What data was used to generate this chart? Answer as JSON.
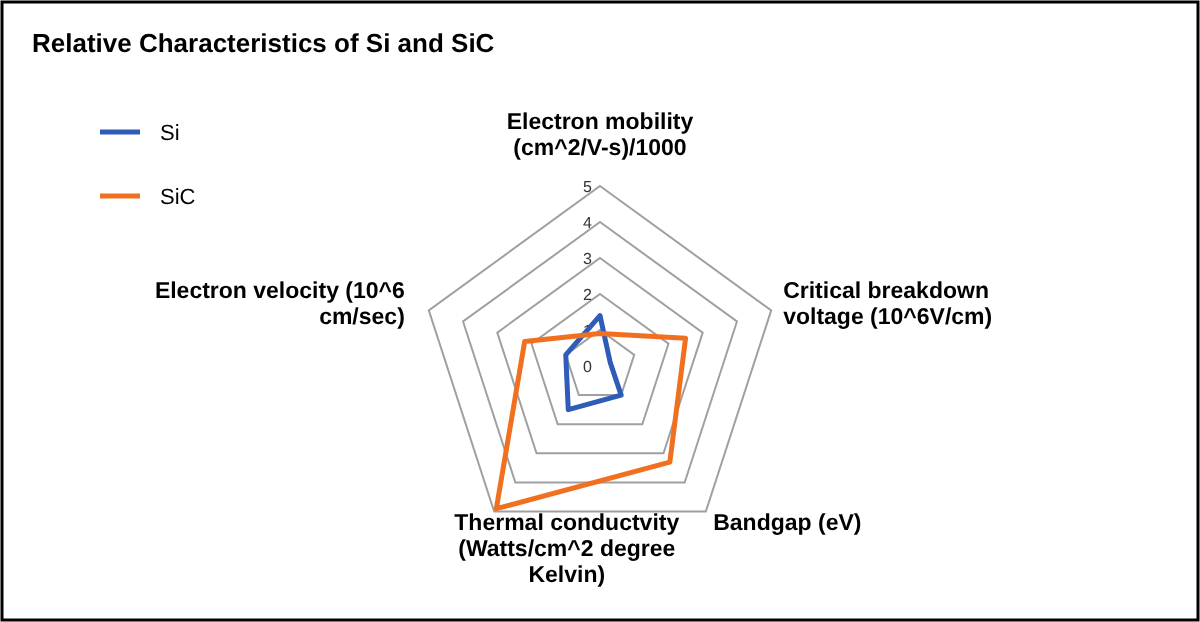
{
  "chart_data": {
    "type": "radar",
    "title": "Relative Characteristics of Si and SiC",
    "categories": [
      "Electron mobility (cm^2/V-s)/1000",
      "Critical breakdown voltage (10^6V/cm)",
      "Bandgap (eV)",
      "Thermal conductvity (Watts/cm^2 degree Kelvin)",
      "Electron velocity (10^6 cm/sec)"
    ],
    "series": [
      {
        "name": "Si",
        "color": "#2e5cb8",
        "values": [
          1.4,
          0.3,
          1.0,
          1.5,
          1.0
        ]
      },
      {
        "name": "SiC",
        "color": "#f07020",
        "values": [
          0.9,
          2.5,
          3.3,
          4.9,
          2.2
        ]
      }
    ],
    "ylim": [
      0,
      5
    ],
    "yticks": [
      0,
      1,
      2,
      3,
      4,
      5
    ],
    "grid": true,
    "legend": "top left"
  }
}
